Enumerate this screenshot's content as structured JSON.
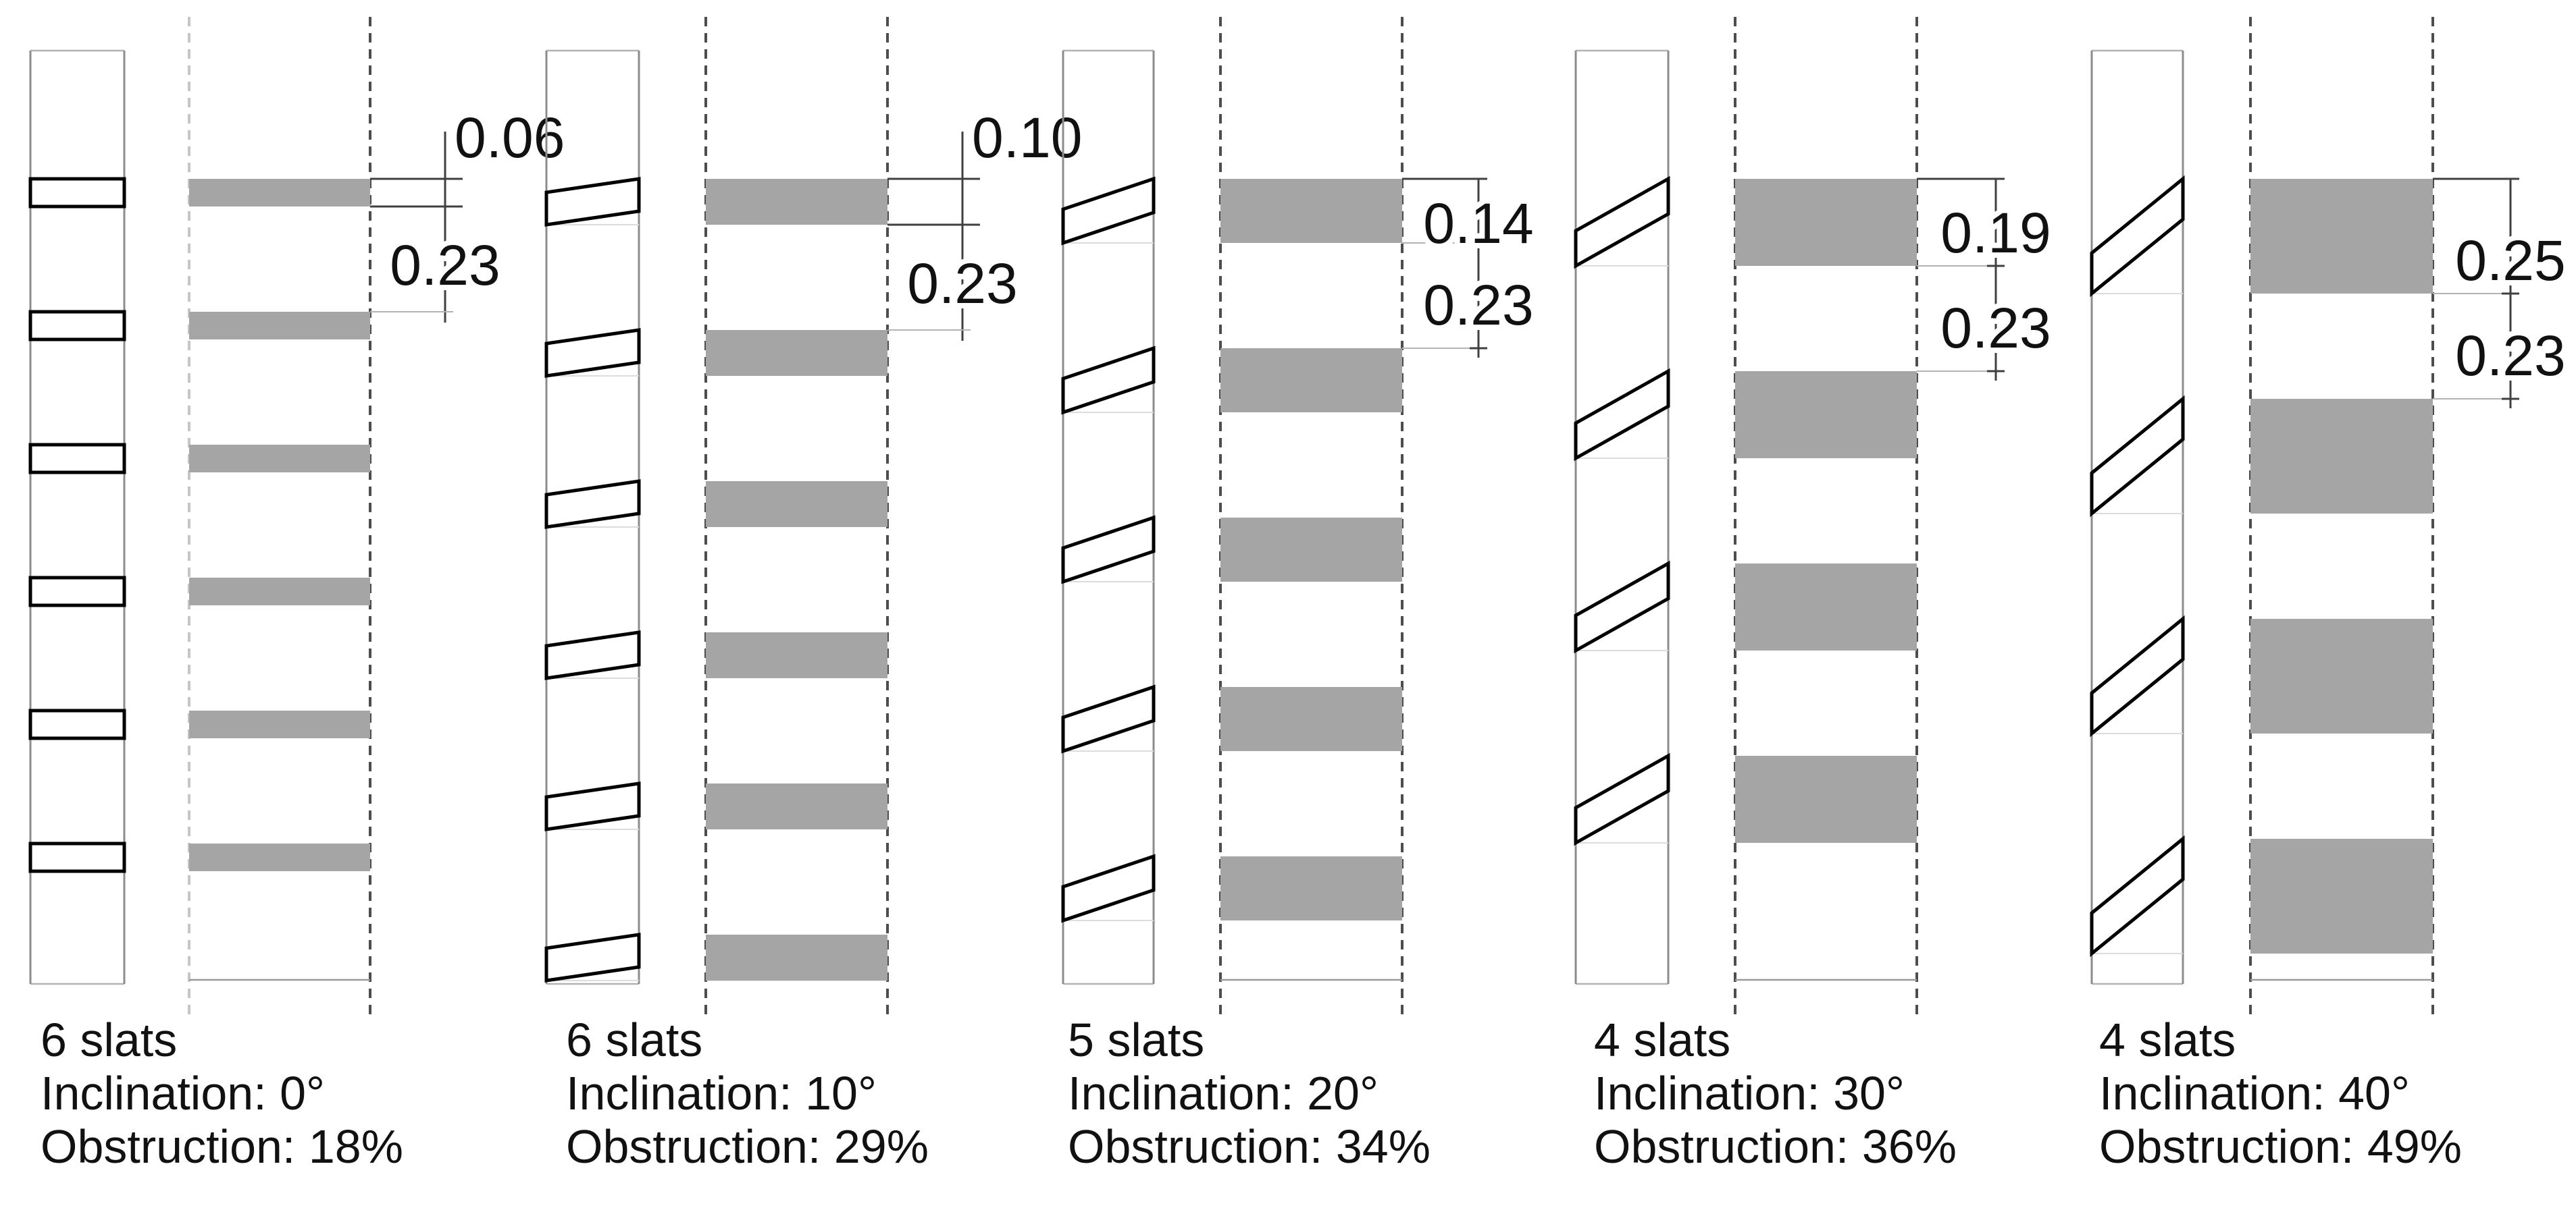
{
  "figure": {
    "description": "Slat shading study: five wall sections with inclined slats and their vertical obstruction projections",
    "colors": {
      "background": "#ffffff",
      "bar_fill": "#a5a5a5",
      "slat_stroke": "#000000",
      "slat_fill": "#ffffff",
      "column_line": "#8c8c8c",
      "column_cap_line": "#b3b3b3",
      "dashed_line": "#4d4d4d",
      "dashed_line_light": "#c6c6c6",
      "dim_line_dark": "#404040",
      "dim_line_light": "#b3b3b3",
      "guide_line": "#dcdcdc",
      "baseline": "#9a9a9a",
      "text": "#111111"
    },
    "panels": [
      {
        "slats_label": "6 slats",
        "inclination_label": "Inclination: 0°",
        "obstruction_label": "Obstruction: 18%",
        "slat_count": 6,
        "inclination_deg": 0,
        "obstruction_percent": 18,
        "dim_thickness": "0.06",
        "dim_gap": "0.23"
      },
      {
        "slats_label": "6 slats",
        "inclination_label": "Inclination: 10°",
        "obstruction_label": "Obstruction: 29%",
        "slat_count": 6,
        "inclination_deg": 10,
        "obstruction_percent": 29,
        "dim_thickness": "0.10",
        "dim_gap": "0.23"
      },
      {
        "slats_label": "5 slats",
        "inclination_label": "Inclination: 20°",
        "obstruction_label": "Obstruction: 34%",
        "slat_count": 5,
        "inclination_deg": 20,
        "obstruction_percent": 34,
        "dim_thickness": "0.14",
        "dim_gap": "0.23"
      },
      {
        "slats_label": "4 slats",
        "inclination_label": "Inclination: 30°",
        "obstruction_label": "Obstruction: 36%",
        "slat_count": 4,
        "inclination_deg": 30,
        "obstruction_percent": 36,
        "dim_thickness": "0.19",
        "dim_gap": "0.23"
      },
      {
        "slats_label": "4 slats",
        "inclination_label": "Inclination: 40°",
        "obstruction_label": "Obstruction: 49%",
        "slat_count": 4,
        "inclination_deg": 40,
        "obstruction_percent": 49,
        "dim_thickness": "0.25",
        "dim_gap": "0.23"
      }
    ]
  }
}
